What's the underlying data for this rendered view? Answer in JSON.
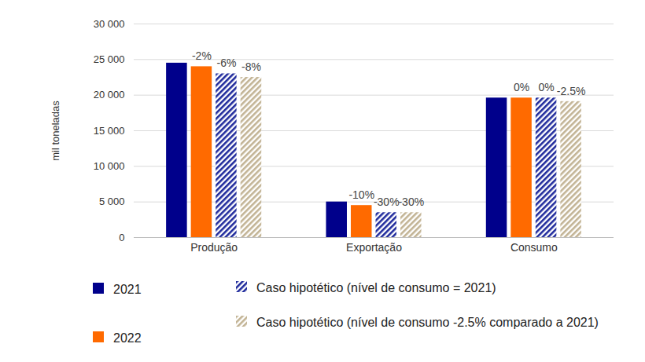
{
  "chart_data": {
    "type": "bar",
    "y_label": "mil toneladas",
    "categories": [
      "Produção",
      "Exportação",
      "Consumo"
    ],
    "series": [
      {
        "name": "2021",
        "color": "#00008b",
        "values": [
          24500,
          5000,
          19600
        ]
      },
      {
        "name": "2022",
        "color": "#ff6a00",
        "values": [
          24000,
          4500,
          19600
        ],
        "change_labels": [
          "-2%",
          "-10%",
          "0%"
        ]
      },
      {
        "name": "Caso hipotético (nível de consumo = 2021)",
        "color": "#1f2a9c",
        "line_style": "hatched",
        "values": [
          23000,
          3500,
          19600
        ],
        "change_labels": [
          "-6%",
          "-30%",
          "0%"
        ]
      },
      {
        "name": "Caso hipotético (nível de consumo -2.5% comparado a 2021)",
        "color": "#c2b394",
        "line_style": "hatched",
        "values": [
          22500,
          3500,
          19100
        ],
        "change_labels": [
          "-8%",
          "-30%",
          "-2.5%"
        ]
      }
    ],
    "ylim": [
      0,
      30000
    ],
    "yticks": [
      0,
      {
        "value": 5000,
        "label": "5 000"
      },
      {
        "value": 10000,
        "label": "10 000"
      },
      {
        "value": 15000,
        "label": "15 000"
      },
      {
        "value": 20000,
        "label": "20 000"
      },
      {
        "value": 25000,
        "label": "25 000"
      },
      {
        "value": 30000,
        "label": "30 000"
      }
    ],
    "grid": true,
    "legend": "bottom"
  }
}
